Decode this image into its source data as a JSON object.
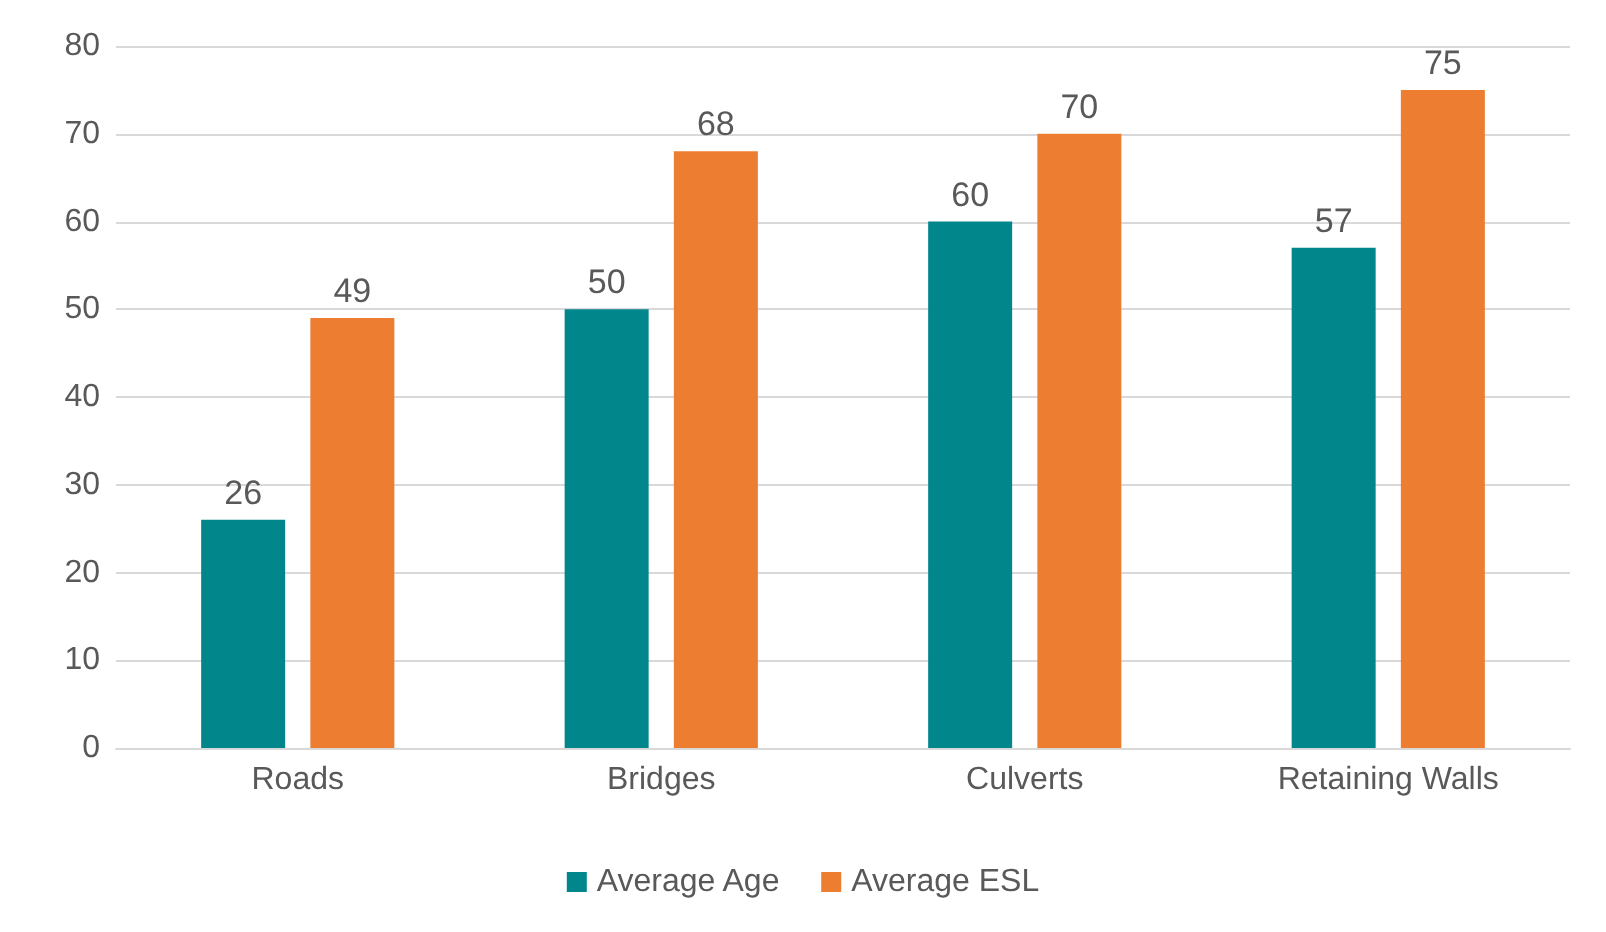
{
  "chart_data": {
    "type": "bar",
    "categories": [
      "Roads",
      "Bridges",
      "Culverts",
      "Retaining Walls"
    ],
    "series": [
      {
        "name": "Average Age",
        "color": "#00868b",
        "values": [
          26,
          50,
          60,
          57
        ]
      },
      {
        "name": "Average ESL",
        "color": "#ed7d31",
        "values": [
          49,
          68,
          70,
          75
        ]
      }
    ],
    "ylim": [
      0,
      80
    ],
    "yticks": [
      0,
      10,
      20,
      30,
      40,
      50,
      60,
      70,
      80
    ],
    "grid": "y",
    "legend": "bottom",
    "data_labels": true
  }
}
